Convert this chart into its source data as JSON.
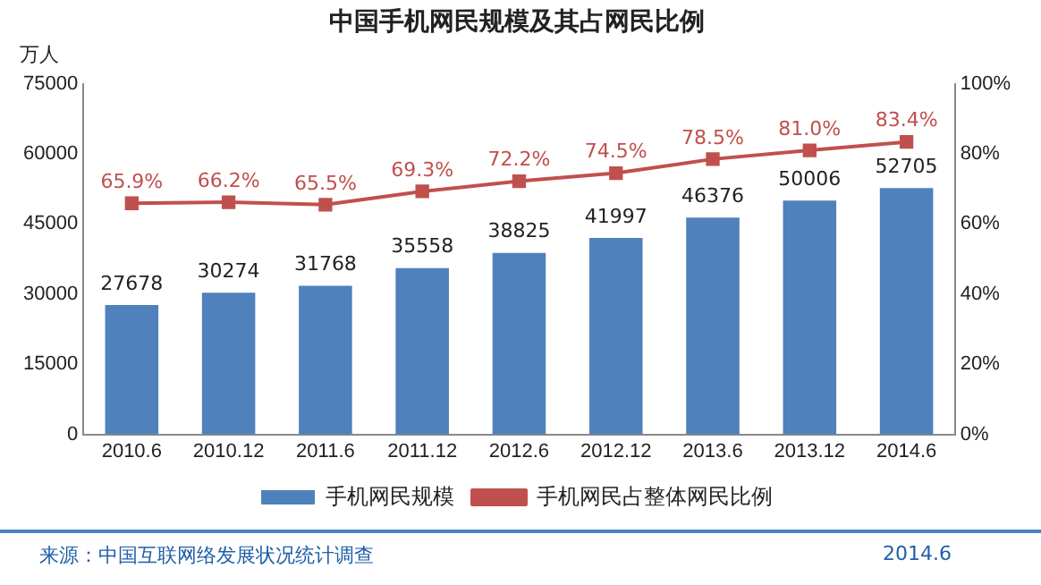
{
  "chart_data": {
    "type": "bar",
    "title": "中国手机网民规模及其占网民比例",
    "ylabel": "万人",
    "categories": [
      "2010.6",
      "2010.12",
      "2011.6",
      "2011.12",
      "2012.6",
      "2012.12",
      "2013.6",
      "2013.12",
      "2014.6"
    ],
    "series": [
      {
        "name": "手机网民规模",
        "color": "#4f81bd",
        "values": [
          27678,
          30274,
          31768,
          35558,
          38825,
          41997,
          46376,
          50006,
          52705
        ],
        "value_labels": [
          "27678",
          "30274",
          "31768",
          "35558",
          "38825",
          "41997",
          "46376",
          "50006",
          "52705"
        ]
      },
      {
        "name": "手机网民占整体网民比例",
        "type": "line",
        "axis": "y2",
        "color": "#c0504d",
        "marker": "square",
        "values": [
          65.9,
          66.2,
          65.5,
          69.3,
          72.2,
          74.5,
          78.5,
          81.0,
          83.4
        ],
        "value_labels": [
          "65.9%",
          "66.2%",
          "65.5%",
          "69.3%",
          "72.2%",
          "74.5%",
          "78.5%",
          "81.0%",
          "83.4%"
        ]
      }
    ],
    "ylim": [
      0,
      75000
    ],
    "yticks": [
      0,
      15000,
      30000,
      45000,
      60000,
      75000
    ],
    "y2lim": [
      0,
      100
    ],
    "y2ticks": [
      {
        "value": 0,
        "label": "0%"
      },
      {
        "value": 20,
        "label": "20%"
      },
      {
        "value": 40,
        "label": "40%"
      },
      {
        "value": 60,
        "label": "60%"
      },
      {
        "value": 80,
        "label": "80%"
      },
      {
        "value": 100,
        "label": "100%"
      }
    ],
    "legend": "bottom",
    "annotations": [
      "来源：中国互联网络发展状况统计调查",
      "2014.6"
    ]
  }
}
